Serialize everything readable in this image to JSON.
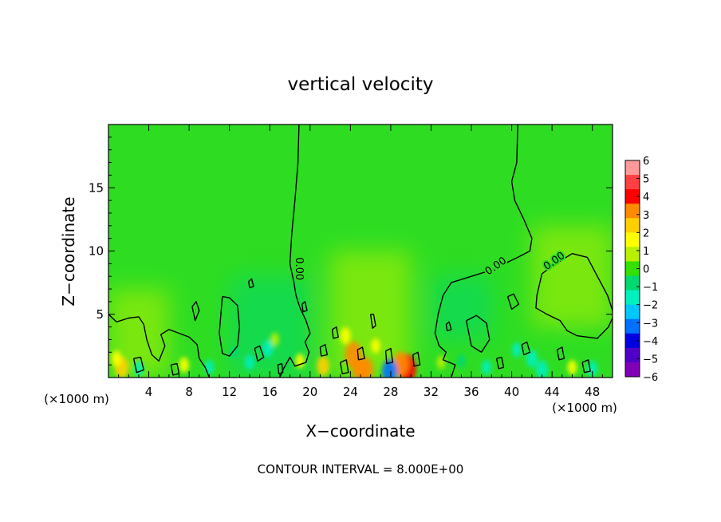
{
  "chart_data": {
    "type": "heatmap",
    "title": "vertical velocity",
    "xlabel": "X−coordinate",
    "ylabel": "Z−coordinate",
    "x_unit_left": "(×1000 m)",
    "x_unit_right": "(×1000 m)",
    "xlim": [
      0,
      50
    ],
    "ylim": [
      0,
      20
    ],
    "x_ticks": [
      4,
      8,
      12,
      16,
      20,
      24,
      28,
      32,
      36,
      40,
      44,
      48
    ],
    "y_ticks": [
      5,
      10,
      15
    ],
    "contour_interval_label": "CONTOUR INTERVAL = 8.000E+00",
    "contour_labels": [
      "0.00",
      "0.00",
      "0.00"
    ],
    "colorbar": {
      "min": -6,
      "max": 6,
      "tick_labels": [
        "6",
        "5",
        "4",
        "3",
        "2",
        "1",
        "0",
        "−1",
        "−2",
        "−3",
        "−4",
        "−5",
        "−6"
      ],
      "colors": [
        "#ff9a9a",
        "#ff4040",
        "#ff0000",
        "#ff8c00",
        "#ffd000",
        "#ffff00",
        "#b8f000",
        "#33e000",
        "#00d870",
        "#00f0c0",
        "#00c8ff",
        "#0070ff",
        "#0000e0",
        "#5000c8",
        "#8000b8"
      ]
    },
    "background_value_color": "#2edd22",
    "hotspots": [
      {
        "x": 24.3,
        "z": 1.8,
        "value": 3.5
      },
      {
        "x": 24.9,
        "z": 0.7,
        "value": 3.0
      },
      {
        "x": 25.5,
        "z": 0.6,
        "value": 3.2
      },
      {
        "x": 29.6,
        "z": 0.7,
        "value": 4.0
      },
      {
        "x": 29.0,
        "z": 1.1,
        "value": 3.0
      },
      {
        "x": 21.3,
        "z": 0.9,
        "value": 2.2
      },
      {
        "x": 23.5,
        "z": 3.3,
        "value": 1.6
      },
      {
        "x": 26.5,
        "z": 2.5,
        "value": 1.2
      },
      {
        "x": 1.3,
        "z": 0.8,
        "value": 2.5
      },
      {
        "x": 0.8,
        "z": 1.5,
        "value": 1.4
      },
      {
        "x": 7.5,
        "z": 1.0,
        "value": 1.3
      },
      {
        "x": 19.0,
        "z": 1.3,
        "value": 1.2
      },
      {
        "x": 16.5,
        "z": 3.0,
        "value": 1.0
      },
      {
        "x": 46.0,
        "z": 0.8,
        "value": 1.2
      },
      {
        "x": 33.0,
        "z": 1.2,
        "value": 1.0
      }
    ],
    "coldspots": [
      {
        "x": 27.9,
        "z": 0.5,
        "value": -3.0
      },
      {
        "x": 15.8,
        "z": 2.3,
        "value": -1.6
      },
      {
        "x": 14.0,
        "z": 1.2,
        "value": -1.2
      },
      {
        "x": 3.0,
        "z": 0.7,
        "value": -1.3
      },
      {
        "x": 42.0,
        "z": 1.5,
        "value": -1.8
      },
      {
        "x": 43.0,
        "z": 0.6,
        "value": -2.0
      },
      {
        "x": 40.5,
        "z": 2.2,
        "value": -1.2
      },
      {
        "x": 35.0,
        "z": 1.3,
        "value": -1.0
      },
      {
        "x": 37.5,
        "z": 0.8,
        "value": -1.2
      },
      {
        "x": 10.0,
        "z": 0.8,
        "value": -1.2
      },
      {
        "x": 12.5,
        "z": 2.0,
        "value": -0.9
      },
      {
        "x": 48.0,
        "z": 0.7,
        "value": -1.4
      }
    ],
    "broad_regions": [
      {
        "x0": 22,
        "x1": 30,
        "z0": 0,
        "z1": 10,
        "value": 0.5
      },
      {
        "x0": 42,
        "x1": 50,
        "z0": 4,
        "z1": 12,
        "value": 0.5
      },
      {
        "x0": 0,
        "x1": 6,
        "z0": 0,
        "z1": 7,
        "value": 0.4
      },
      {
        "x0": 12,
        "x1": 20,
        "z0": 0,
        "z1": 8,
        "value": -0.5
      },
      {
        "x0": 32,
        "x1": 38,
        "z0": 3,
        "z1": 8,
        "value": -0.4
      }
    ],
    "zero_contours": [
      [
        [
          18.9,
          20
        ],
        [
          18.8,
          17
        ],
        [
          18.5,
          14
        ],
        [
          18.2,
          11.5
        ],
        [
          18.0,
          9.0
        ],
        [
          18.4,
          7.5
        ],
        [
          18.6,
          6.5
        ],
        [
          19.0,
          5.5
        ],
        [
          19.6,
          4.5
        ],
        [
          20.0,
          3.5
        ],
        [
          19.5,
          2.8
        ],
        [
          19.9,
          2.0
        ],
        [
          19.6,
          1.2
        ],
        [
          18.5,
          0.9
        ],
        [
          18.0,
          1.6
        ],
        [
          17.3,
          0.6
        ],
        [
          17.0,
          0
        ]
      ],
      [
        [
          40.6,
          20
        ],
        [
          40.5,
          17
        ],
        [
          40.0,
          15.5
        ],
        [
          40.3,
          14.0
        ],
        [
          41.2,
          12.5
        ],
        [
          42.0,
          11.0
        ],
        [
          41.8,
          10.0
        ],
        [
          40.6,
          9.5
        ],
        [
          39.8,
          9.2
        ],
        [
          38.0,
          8.5
        ],
        [
          36.0,
          8.0
        ],
        [
          34.0,
          7.5
        ],
        [
          33.2,
          6.5
        ],
        [
          32.7,
          5.0
        ],
        [
          32.4,
          3.5
        ],
        [
          32.8,
          2.5
        ],
        [
          33.5,
          2.0
        ],
        [
          33.2,
          1.4
        ],
        [
          34.4,
          1.0
        ],
        [
          34.0,
          0
        ]
      ],
      [
        [
          50,
          5.3
        ],
        [
          49.5,
          6.5
        ],
        [
          48.5,
          8.0
        ],
        [
          47.5,
          9.5
        ],
        [
          46.0,
          9.8
        ],
        [
          45.0,
          9.3
        ],
        [
          44.0,
          8.8
        ],
        [
          43.0,
          8.2
        ],
        [
          42.5,
          6.5
        ],
        [
          42.4,
          5.5
        ],
        [
          43.5,
          5.0
        ],
        [
          44.8,
          4.5
        ],
        [
          45.5,
          3.7
        ],
        [
          46.5,
          3.3
        ],
        [
          48.5,
          3.1
        ],
        [
          49.6,
          4.0
        ],
        [
          50,
          4.7
        ]
      ],
      [
        [
          11.3,
          6.4
        ],
        [
          12.0,
          6.3
        ],
        [
          12.8,
          5.7
        ],
        [
          13.0,
          4.0
        ],
        [
          12.8,
          2.5
        ],
        [
          12.0,
          1.7
        ],
        [
          11.3,
          1.9
        ],
        [
          11.0,
          3.5
        ],
        [
          11.2,
          5.5
        ],
        [
          11.3,
          6.4
        ]
      ],
      [
        [
          0,
          5.0
        ],
        [
          0.8,
          4.4
        ],
        [
          2.0,
          4.7
        ],
        [
          3.0,
          4.8
        ],
        [
          3.5,
          4.2
        ],
        [
          3.8,
          3.0
        ],
        [
          4.3,
          1.8
        ],
        [
          5.0,
          1.3
        ],
        [
          5.6,
          2.5
        ],
        [
          5.2,
          3.4
        ],
        [
          6.0,
          3.8
        ],
        [
          7.0,
          3.5
        ],
        [
          8.0,
          3.2
        ],
        [
          8.8,
          2.6
        ],
        [
          9.0,
          1.5
        ],
        [
          9.6,
          0.8
        ],
        [
          10.0,
          0
        ]
      ],
      [
        [
          8.3,
          5.6
        ],
        [
          8.7,
          6.0
        ],
        [
          9.0,
          5.3
        ],
        [
          8.6,
          4.5
        ],
        [
          8.3,
          5.6
        ]
      ],
      [
        [
          26.0,
          5.0
        ],
        [
          26.3,
          5.0
        ],
        [
          26.5,
          4.1
        ],
        [
          26.2,
          3.9
        ],
        [
          26.0,
          5.0
        ]
      ],
      [
        [
          39.6,
          6.4
        ],
        [
          40.2,
          6.6
        ],
        [
          40.7,
          5.8
        ],
        [
          40.0,
          5.4
        ],
        [
          39.6,
          6.4
        ]
      ],
      [
        [
          13.9,
          7.6
        ],
        [
          14.2,
          7.8
        ],
        [
          14.4,
          7.2
        ],
        [
          14.0,
          7.1
        ],
        [
          13.9,
          7.6
        ]
      ],
      [
        [
          35.5,
          4.5
        ],
        [
          36.5,
          4.9
        ],
        [
          37.5,
          4.3
        ],
        [
          37.8,
          3.0
        ],
        [
          37.0,
          2.0
        ],
        [
          36.0,
          2.5
        ],
        [
          35.5,
          4.5
        ]
      ],
      [
        [
          2.5,
          1.5
        ],
        [
          3.2,
          1.6
        ],
        [
          3.5,
          0.6
        ],
        [
          2.8,
          0.4
        ],
        [
          2.5,
          1.5
        ]
      ],
      [
        [
          14.5,
          2.3
        ],
        [
          15.0,
          2.5
        ],
        [
          15.4,
          1.6
        ],
        [
          14.8,
          1.3
        ],
        [
          14.5,
          2.3
        ]
      ],
      [
        [
          22.2,
          3.8
        ],
        [
          22.6,
          4.0
        ],
        [
          22.8,
          3.2
        ],
        [
          22.3,
          3.1
        ],
        [
          22.2,
          3.8
        ]
      ],
      [
        [
          24.7,
          2.2
        ],
        [
          25.2,
          2.4
        ],
        [
          25.4,
          1.5
        ],
        [
          24.8,
          1.4
        ],
        [
          24.7,
          2.2
        ]
      ],
      [
        [
          27.5,
          2.1
        ],
        [
          28.0,
          2.3
        ],
        [
          28.2,
          1.2
        ],
        [
          27.6,
          1.1
        ],
        [
          27.5,
          2.1
        ]
      ],
      [
        [
          21.0,
          2.4
        ],
        [
          21.5,
          2.6
        ],
        [
          21.7,
          1.8
        ],
        [
          21.1,
          1.7
        ],
        [
          21.0,
          2.4
        ]
      ],
      [
        [
          30.2,
          1.8
        ],
        [
          30.7,
          2.0
        ],
        [
          30.9,
          1.0
        ],
        [
          30.3,
          0.9
        ],
        [
          30.2,
          1.8
        ]
      ],
      [
        [
          23.0,
          1.2
        ],
        [
          23.6,
          1.4
        ],
        [
          23.8,
          0.4
        ],
        [
          23.2,
          0.3
        ],
        [
          23.0,
          1.2
        ]
      ],
      [
        [
          41.0,
          2.6
        ],
        [
          41.5,
          2.8
        ],
        [
          41.8,
          2.0
        ],
        [
          41.2,
          1.8
        ],
        [
          41.0,
          2.6
        ]
      ],
      [
        [
          44.5,
          2.2
        ],
        [
          45.0,
          2.4
        ],
        [
          45.2,
          1.5
        ],
        [
          44.7,
          1.4
        ],
        [
          44.5,
          2.2
        ]
      ],
      [
        [
          47.0,
          1.2
        ],
        [
          47.6,
          1.4
        ],
        [
          47.8,
          0.5
        ],
        [
          47.2,
          0.4
        ],
        [
          47.0,
          1.2
        ]
      ],
      [
        [
          6.2,
          1.0
        ],
        [
          6.8,
          1.1
        ],
        [
          7.0,
          0.3
        ],
        [
          6.4,
          0.2
        ],
        [
          6.2,
          1.0
        ]
      ],
      [
        [
          16.8,
          1.0
        ],
        [
          17.2,
          1.1
        ],
        [
          17.3,
          0.4
        ],
        [
          16.9,
          0.3
        ],
        [
          16.8,
          1.0
        ]
      ],
      [
        [
          38.5,
          1.5
        ],
        [
          39.0,
          1.6
        ],
        [
          39.2,
          0.8
        ],
        [
          38.7,
          0.7
        ],
        [
          38.5,
          1.5
        ]
      ],
      [
        [
          19.2,
          5.8
        ],
        [
          19.5,
          6.0
        ],
        [
          19.7,
          5.3
        ],
        [
          19.3,
          5.2
        ],
        [
          19.2,
          5.8
        ]
      ],
      [
        [
          33.5,
          4.2
        ],
        [
          33.8,
          4.4
        ],
        [
          34.0,
          3.8
        ],
        [
          33.6,
          3.7
        ],
        [
          33.5,
          4.2
        ]
      ]
    ]
  }
}
